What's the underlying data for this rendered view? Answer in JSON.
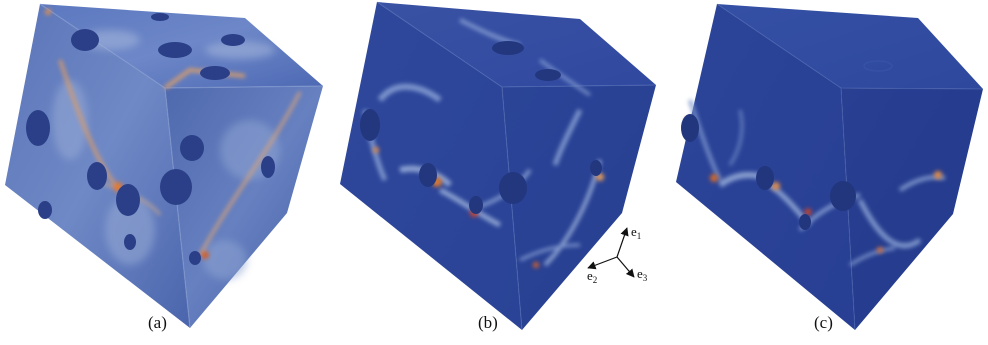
{
  "panels": [
    {
      "caption": "(a)"
    },
    {
      "caption": "(b)"
    },
    {
      "caption": "(c)"
    }
  ],
  "axes": {
    "e1": {
      "base": "e",
      "sub": "1"
    },
    "e2": {
      "base": "e",
      "sub": "2"
    },
    "e3": {
      "base": "e",
      "sub": "3"
    }
  },
  "colors": {
    "dark_blue": "#2c3e8e",
    "mid_blue": "#4a67b4",
    "light_blue": "#7f9ad0",
    "pale": "#b9c7e0",
    "hot": "#e0762e",
    "red": "#c23a22"
  }
}
